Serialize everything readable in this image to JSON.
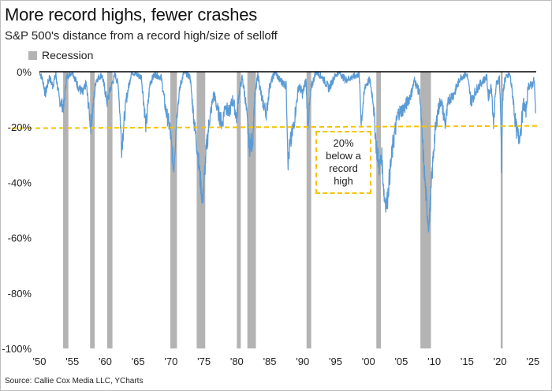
{
  "title": "More record highs, fewer crashes",
  "subtitle": "S&P 500's distance from a record high/size of selloff",
  "legend_label": "Recession",
  "annotation": "20% below a record high",
  "source": "Source: Callie Cox Media LLC, YCharts",
  "colors": {
    "series": "#5b9bd5",
    "recession": "#b3b3b3",
    "threshold": "#f5c400",
    "zero_line": "#000000"
  },
  "chart_data": {
    "type": "area",
    "title": "More record highs, fewer crashes",
    "subtitle": "S&P 500's distance from a record high/size of selloff",
    "xlabel": "",
    "ylabel": "",
    "xlim": [
      1950,
      2025.5
    ],
    "ylim": [
      -100,
      0
    ],
    "x_ticks": [
      1950,
      1955,
      1960,
      1965,
      1970,
      1975,
      1980,
      1985,
      1990,
      1995,
      2000,
      2005,
      2010,
      2015,
      2020,
      2025
    ],
    "x_tick_labels": [
      "'50",
      "'55",
      "'60",
      "'65",
      "'70",
      "'75",
      "'80",
      "'85",
      "'90",
      "'95",
      "'00",
      "'05",
      "'10",
      "'15",
      "'20",
      "'25"
    ],
    "y_ticks": [
      0,
      -20,
      -40,
      -60,
      -80,
      -100
    ],
    "y_tick_labels": [
      "0%",
      "-20%",
      "-40%",
      "-60%",
      "-80%",
      "-100%"
    ],
    "threshold": -20,
    "grid": false,
    "legend": "top-left",
    "recessions": [
      [
        1953.6,
        1954.4
      ],
      [
        1957.7,
        1958.4
      ],
      [
        1960.3,
        1961.1
      ],
      [
        1969.9,
        1970.9
      ],
      [
        1973.9,
        1975.2
      ],
      [
        1980.0,
        1980.6
      ],
      [
        1981.6,
        1982.9
      ],
      [
        1990.6,
        1991.3
      ],
      [
        2001.2,
        2001.9
      ],
      [
        2007.9,
        2009.5
      ],
      [
        2020.1,
        2020.4
      ]
    ],
    "series": [
      {
        "name": "S&P 500 drawdown from record high",
        "x": [
          1950.0,
          1950.5,
          1950.9,
          1951.5,
          1952.0,
          1952.5,
          1953.0,
          1953.7,
          1954.1,
          1955.0,
          1955.8,
          1956.6,
          1957.1,
          1957.8,
          1958.6,
          1959.5,
          1960.3,
          1960.8,
          1961.5,
          1962.0,
          1962.5,
          1963.2,
          1964.0,
          1965.5,
          1966.2,
          1966.8,
          1967.5,
          1968.5,
          1969.2,
          1969.8,
          1970.4,
          1970.9,
          1971.4,
          1972.0,
          1972.9,
          1973.5,
          1974.0,
          1974.4,
          1974.8,
          1975.3,
          1975.8,
          1976.5,
          1977.2,
          1977.8,
          1978.2,
          1978.8,
          1979.4,
          1980.0,
          1980.2,
          1980.8,
          1981.3,
          1981.9,
          1982.4,
          1982.7,
          1983.2,
          1983.8,
          1984.5,
          1985.0,
          1985.8,
          1986.5,
          1987.5,
          1987.8,
          1988.0,
          1988.6,
          1989.4,
          1990.0,
          1990.5,
          1990.8,
          1991.3,
          1992.0,
          1993.0,
          1994.0,
          1994.8,
          1995.5,
          1996.5,
          1997.5,
          1998.6,
          1998.9,
          1999.5,
          2000.2,
          2000.7,
          2001.2,
          2001.7,
          2002.0,
          2002.4,
          2002.8,
          2003.2,
          2003.8,
          2004.5,
          2005.5,
          2006.5,
          2007.0,
          2007.8,
          2008.2,
          2008.6,
          2008.9,
          2009.2,
          2009.6,
          2010.0,
          2010.5,
          2011.0,
          2011.7,
          2012.2,
          2013.0,
          2014.0,
          2015.0,
          2015.6,
          2016.1,
          2016.8,
          2017.5,
          2018.0,
          2018.2,
          2018.7,
          2018.98,
          2019.4,
          2019.9,
          2020.15,
          2020.22,
          2020.4,
          2020.7,
          2021.0,
          2021.5,
          2022.0,
          2022.4,
          2022.8,
          2023.2,
          2023.6,
          2023.9,
          2024.3,
          2024.8,
          2025.2,
          2025.4
        ],
        "values": [
          0,
          -3,
          -8,
          -2,
          -5,
          -1,
          -10,
          -13,
          -2,
          0,
          -5,
          -8,
          -4,
          -20,
          -3,
          -1,
          -11,
          -6,
          -1,
          -5,
          -27,
          -10,
          0,
          -2,
          -20,
          -4,
          -1,
          -2,
          -14,
          -20,
          -35,
          -15,
          -5,
          0,
          -2,
          -18,
          -28,
          -38,
          -47,
          -30,
          -18,
          -8,
          -15,
          -19,
          -12,
          -15,
          -10,
          -17,
          -10,
          -2,
          -10,
          -27,
          -25,
          -10,
          -1,
          -10,
          -15,
          -5,
          0,
          -3,
          -5,
          -33,
          -28,
          -20,
          -5,
          -8,
          -3,
          -19,
          -6,
          0,
          -2,
          -6,
          -2,
          0,
          -3,
          -2,
          -1,
          -18,
          -5,
          -3,
          -10,
          -27,
          -35,
          -30,
          -45,
          -48,
          -38,
          -25,
          -15,
          -13,
          -8,
          -3,
          -8,
          -25,
          -40,
          -50,
          -56,
          -40,
          -25,
          -15,
          -10,
          -19,
          -10,
          -8,
          -2,
          -1,
          -11,
          -8,
          -5,
          -3,
          -2,
          -9,
          -5,
          -19,
          -5,
          -2,
          -20,
          -34,
          -10,
          -3,
          -2,
          -1,
          -10,
          -20,
          -24,
          -20,
          -11,
          -15,
          -5,
          -5,
          -3,
          -15
        ]
      }
    ]
  }
}
